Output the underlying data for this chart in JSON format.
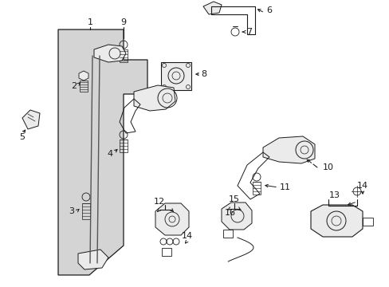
{
  "bg_color": "#ffffff",
  "fig_width": 4.89,
  "fig_height": 3.6,
  "dpi": 100,
  "lc": "#1a1a1a",
  "fc_gray": "#d4d4d4",
  "fc_light": "#ebebeb",
  "fs_label": 7.5
}
